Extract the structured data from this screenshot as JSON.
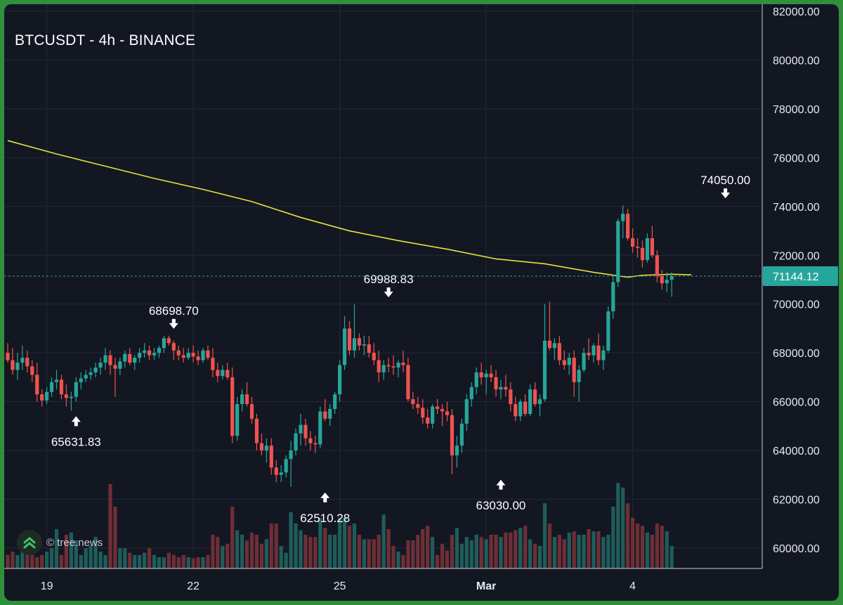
{
  "chart_data": {
    "type": "candlestick",
    "title": "BTCUSDT - 4h - BINANCE",
    "watermark": "© tree.news",
    "colors": {
      "up": "#26a69a",
      "down": "#ef5350",
      "volume_up": "#1f5d5a",
      "volume_down": "#6e2f36",
      "ma": "#e6e33a",
      "price_badge": "#26a69a",
      "background": "#131722"
    },
    "y_axis": {
      "ylim": [
        59000,
        82000
      ],
      "ticks": [
        "82000.00",
        "80000.00",
        "78000.00",
        "76000.00",
        "74000.00",
        "72000.00",
        "70000.00",
        "68000.00",
        "66000.00",
        "64000.00",
        "62000.00",
        "60000.00"
      ],
      "tick_values": [
        82000,
        80000,
        78000,
        76000,
        74000,
        72000,
        70000,
        68000,
        66000,
        64000,
        62000,
        60000
      ]
    },
    "x_axis": {
      "tick_labels": [
        "19",
        "22",
        "25",
        "Mar",
        "4"
      ],
      "tick_bar_index": [
        8,
        38,
        68,
        98,
        128
      ]
    },
    "last_price": {
      "value": 71144.12,
      "label": "71144.12"
    },
    "annotations": [
      {
        "label": "68698.70",
        "bar": 34,
        "price": 68698.7,
        "position": "above"
      },
      {
        "label": "65631.83",
        "bar": 14,
        "price": 65631.83,
        "position": "below"
      },
      {
        "label": "69988.83",
        "bar": 78,
        "price": 69988.83,
        "position": "above"
      },
      {
        "label": "62510.28",
        "bar": 65,
        "price": 62510.28,
        "position": "below"
      },
      {
        "label": "63030.00",
        "bar": 101,
        "price": 63030.0,
        "position": "below"
      },
      {
        "label": "74050.00",
        "bar": 147,
        "price": 74050.0,
        "position": "above"
      }
    ],
    "ohlc": [
      [
        68000,
        68400,
        67600,
        67700
      ],
      [
        67700,
        68200,
        67100,
        67300
      ],
      [
        67300,
        68000,
        66900,
        67600
      ],
      [
        67600,
        68300,
        67300,
        67800
      ],
      [
        67800,
        68100,
        67200,
        67450
      ],
      [
        67450,
        67700,
        66800,
        67100
      ],
      [
        67100,
        67600,
        66000,
        66300
      ],
      [
        66300,
        66500,
        65800,
        66050
      ],
      [
        66050,
        66600,
        65900,
        66400
      ],
      [
        66400,
        67000,
        66200,
        66800
      ],
      [
        66800,
        67300,
        66500,
        66900
      ],
      [
        66900,
        67100,
        66100,
        66300
      ],
      [
        66300,
        66700,
        65800,
        66150
      ],
      [
        66150,
        66400,
        65632,
        66200
      ],
      [
        66200,
        67000,
        66000,
        66800
      ],
      [
        66800,
        67200,
        66500,
        66950
      ],
      [
        66950,
        67300,
        66800,
        67100
      ],
      [
        67100,
        67400,
        66900,
        67200
      ],
      [
        67200,
        67600,
        67000,
        67400
      ],
      [
        67400,
        67800,
        67100,
        67600
      ],
      [
        67600,
        68200,
        67300,
        67900
      ],
      [
        67900,
        68100,
        67100,
        67500
      ],
      [
        67500,
        67800,
        66200,
        67350
      ],
      [
        67350,
        67800,
        67100,
        67650
      ],
      [
        67650,
        68100,
        67400,
        67950
      ],
      [
        67950,
        68200,
        67500,
        67600
      ],
      [
        67600,
        67900,
        67300,
        67800
      ],
      [
        67800,
        68200,
        67600,
        68000
      ],
      [
        68000,
        68400,
        67800,
        68100
      ],
      [
        68100,
        68300,
        67700,
        67900
      ],
      [
        67900,
        68200,
        67700,
        68000
      ],
      [
        68000,
        68300,
        67800,
        68200
      ],
      [
        68200,
        68700,
        68000,
        68600
      ],
      [
        68600,
        68699,
        68300,
        68400
      ],
      [
        68400,
        68500,
        67700,
        68100
      ],
      [
        68100,
        68300,
        67700,
        67900
      ],
      [
        67900,
        68200,
        67600,
        67800
      ],
      [
        67800,
        68200,
        67700,
        68000
      ],
      [
        68000,
        68300,
        67600,
        67850
      ],
      [
        67850,
        68100,
        67500,
        67700
      ],
      [
        67700,
        68200,
        67600,
        68100
      ],
      [
        68100,
        68300,
        67700,
        67800
      ],
      [
        67800,
        68200,
        67000,
        67300
      ],
      [
        67300,
        67600,
        66800,
        67050
      ],
      [
        67050,
        67500,
        66900,
        67300
      ],
      [
        67300,
        67600,
        66900,
        67000
      ],
      [
        67000,
        67400,
        64300,
        64600
      ],
      [
        64600,
        66200,
        64400,
        65900
      ],
      [
        65900,
        66500,
        65600,
        66300
      ],
      [
        66300,
        66800,
        65800,
        65900
      ],
      [
        65900,
        66200,
        65100,
        65300
      ],
      [
        65300,
        65500,
        64000,
        64300
      ],
      [
        64300,
        64700,
        63800,
        64000
      ],
      [
        64000,
        64500,
        63500,
        64200
      ],
      [
        64200,
        64500,
        63000,
        63300
      ],
      [
        63300,
        63600,
        62700,
        63000
      ],
      [
        63000,
        63400,
        62700,
        63100
      ],
      [
        63100,
        63800,
        62900,
        63650
      ],
      [
        63650,
        64400,
        62510,
        64000
      ],
      [
        64000,
        64900,
        63800,
        64700
      ],
      [
        64700,
        65500,
        64200,
        65050
      ],
      [
        65050,
        65300,
        64200,
        64500
      ],
      [
        64500,
        64800,
        64000,
        64300
      ],
      [
        64300,
        64600,
        63900,
        64250
      ],
      [
        64250,
        65800,
        64100,
        65600
      ],
      [
        65600,
        66100,
        65200,
        65300
      ],
      [
        65300,
        65900,
        65000,
        65700
      ],
      [
        65700,
        66400,
        65500,
        66300
      ],
      [
        66300,
        67700,
        66000,
        67500
      ],
      [
        67500,
        69500,
        67300,
        69000
      ],
      [
        69000,
        69300,
        67900,
        68100
      ],
      [
        68100,
        69989,
        67800,
        68600
      ],
      [
        68600,
        68800,
        68100,
        68300
      ],
      [
        68300,
        68700,
        67900,
        68350
      ],
      [
        68350,
        68700,
        67800,
        68000
      ],
      [
        68000,
        68400,
        67500,
        67700
      ],
      [
        67700,
        68100,
        66800,
        67200
      ],
      [
        67200,
        67700,
        66900,
        67500
      ],
      [
        67500,
        67800,
        67200,
        67450
      ],
      [
        67450,
        67900,
        67100,
        67400
      ],
      [
        67400,
        67700,
        67000,
        67600
      ],
      [
        67600,
        68100,
        67200,
        67500
      ],
      [
        67500,
        67800,
        66000,
        66100
      ],
      [
        66100,
        66400,
        65700,
        65900
      ],
      [
        65900,
        66200,
        65500,
        65750
      ],
      [
        65750,
        66100,
        65100,
        65350
      ],
      [
        65350,
        65700,
        64900,
        65100
      ],
      [
        65100,
        65900,
        64900,
        65800
      ],
      [
        65800,
        66100,
        65500,
        65700
      ],
      [
        65700,
        65900,
        65000,
        65600
      ],
      [
        65600,
        66000,
        65200,
        65450
      ],
      [
        65450,
        65700,
        63030,
        63800
      ],
      [
        63800,
        64600,
        63300,
        64200
      ],
      [
        64200,
        65300,
        63900,
        65100
      ],
      [
        65100,
        66300,
        64800,
        66100
      ],
      [
        66100,
        66800,
        65800,
        66600
      ],
      [
        66600,
        67400,
        66300,
        67200
      ],
      [
        67200,
        67600,
        66700,
        67000
      ],
      [
        67000,
        67300,
        66300,
        67150
      ],
      [
        67150,
        67500,
        66800,
        67000
      ],
      [
        67000,
        67300,
        66200,
        66500
      ],
      [
        66500,
        66900,
        66100,
        66600
      ],
      [
        66600,
        67100,
        66200,
        66500
      ],
      [
        66500,
        66800,
        65600,
        65900
      ],
      [
        65900,
        66200,
        65200,
        65400
      ],
      [
        65400,
        66100,
        65200,
        66000
      ],
      [
        66000,
        66300,
        65400,
        65500
      ],
      [
        65500,
        66700,
        65400,
        66500
      ],
      [
        66500,
        66800,
        65800,
        65900
      ],
      [
        65900,
        66300,
        65400,
        66100
      ],
      [
        66100,
        70000,
        66000,
        68500
      ],
      [
        68500,
        70100,
        68100,
        68200
      ],
      [
        68200,
        68600,
        67700,
        68400
      ],
      [
        68400,
        68700,
        67500,
        67700
      ],
      [
        67700,
        68100,
        67300,
        67500
      ],
      [
        67500,
        68000,
        67100,
        67800
      ],
      [
        67800,
        68100,
        66200,
        66800
      ],
      [
        66800,
        67500,
        66000,
        67300
      ],
      [
        67300,
        68200,
        67200,
        68000
      ],
      [
        68000,
        68600,
        67700,
        67900
      ],
      [
        67900,
        68400,
        67600,
        68300
      ],
      [
        68300,
        68800,
        67500,
        67700
      ],
      [
        67700,
        68300,
        67300,
        68100
      ],
      [
        68100,
        69900,
        68000,
        69700
      ],
      [
        69700,
        71200,
        69400,
        70900
      ],
      [
        70900,
        73500,
        70700,
        73400
      ],
      [
        73400,
        74050,
        72700,
        73700
      ],
      [
        73700,
        73900,
        72600,
        72700
      ],
      [
        72700,
        73100,
        72100,
        72350
      ],
      [
        72350,
        72700,
        71900,
        72300
      ],
      [
        72300,
        72600,
        71500,
        71800
      ],
      [
        71800,
        72900,
        71700,
        72700
      ],
      [
        72700,
        73200,
        71900,
        72000
      ],
      [
        72000,
        72200,
        70900,
        71150
      ],
      [
        71150,
        71400,
        70600,
        70850
      ],
      [
        70850,
        71300,
        70500,
        71000
      ],
      [
        71000,
        71300,
        70300,
        71144
      ]
    ],
    "volume_rel": [
      0.12,
      0.15,
      0.12,
      0.18,
      0.15,
      0.12,
      0.1,
      0.12,
      0.15,
      0.18,
      0.35,
      0.12,
      0.3,
      0.32,
      0.25,
      0.12,
      0.18,
      0.2,
      0.28,
      0.15,
      0.12,
      0.75,
      0.55,
      0.18,
      0.18,
      0.14,
      0.12,
      0.12,
      0.14,
      0.18,
      0.12,
      0.1,
      0.1,
      0.14,
      0.12,
      0.1,
      0.12,
      0.1,
      0.09,
      0.1,
      0.1,
      0.12,
      0.3,
      0.28,
      0.2,
      0.22,
      0.55,
      0.34,
      0.3,
      0.25,
      0.32,
      0.3,
      0.22,
      0.26,
      0.4,
      0.4,
      0.2,
      0.14,
      0.5,
      0.4,
      0.34,
      0.3,
      0.28,
      0.28,
      0.45,
      0.36,
      0.3,
      0.3,
      0.45,
      0.45,
      0.38,
      0.4,
      0.3,
      0.26,
      0.26,
      0.26,
      0.3,
      0.48,
      0.35,
      0.2,
      0.15,
      0.12,
      0.25,
      0.25,
      0.3,
      0.35,
      0.38,
      0.28,
      0.12,
      0.22,
      0.16,
      0.3,
      0.36,
      0.22,
      0.28,
      0.25,
      0.3,
      0.28,
      0.26,
      0.3,
      0.3,
      0.28,
      0.32,
      0.32,
      0.34,
      0.36,
      0.38,
      0.26,
      0.22,
      0.2,
      0.58,
      0.4,
      0.28,
      0.3,
      0.26,
      0.32,
      0.33,
      0.3,
      0.3,
      0.35,
      0.33,
      0.33,
      0.28,
      0.3,
      0.55,
      0.76,
      0.72,
      0.58,
      0.45,
      0.4,
      0.38,
      0.32,
      0.3,
      0.4,
      0.38,
      0.33,
      0.2
    ],
    "ma_points": [
      [
        0,
        76700
      ],
      [
        10,
        76150
      ],
      [
        20,
        75650
      ],
      [
        30,
        75150
      ],
      [
        40,
        74700
      ],
      [
        50,
        74200
      ],
      [
        60,
        73550
      ],
      [
        70,
        73000
      ],
      [
        80,
        72600
      ],
      [
        90,
        72250
      ],
      [
        100,
        71850
      ],
      [
        110,
        71650
      ],
      [
        120,
        71300
      ],
      [
        127,
        71100
      ],
      [
        130,
        71180
      ],
      [
        136,
        71220
      ],
      [
        140,
        71200
      ]
    ]
  }
}
